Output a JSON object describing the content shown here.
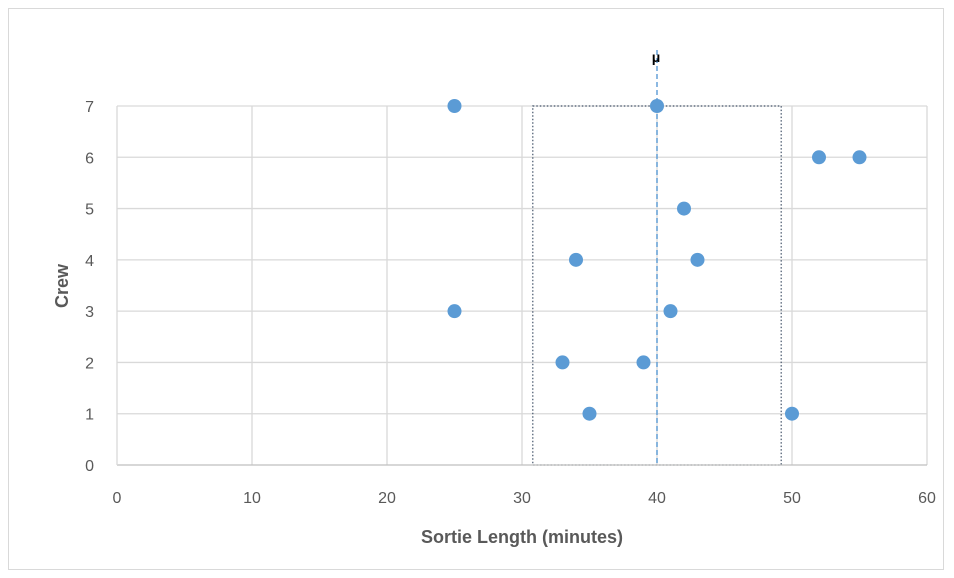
{
  "chart_data": {
    "type": "scatter",
    "title": "",
    "xlabel": "Sortie Length (minutes)",
    "ylabel": "Crew",
    "xlim": [
      0,
      60
    ],
    "ylim": [
      0,
      7
    ],
    "x_ticks": [
      0,
      10,
      20,
      30,
      40,
      50,
      60
    ],
    "y_ticks": [
      0,
      1,
      2,
      3,
      4,
      5,
      6,
      7
    ],
    "grid": true,
    "legend": "none",
    "point_color": "#5b9bd5",
    "series": [
      {
        "points": [
          {
            "x": 25,
            "y": 7
          },
          {
            "x": 40,
            "y": 7
          },
          {
            "x": 52,
            "y": 6
          },
          {
            "x": 55,
            "y": 6
          },
          {
            "x": 42,
            "y": 5
          },
          {
            "x": 34,
            "y": 4
          },
          {
            "x": 43,
            "y": 4
          },
          {
            "x": 25,
            "y": 3
          },
          {
            "x": 41,
            "y": 3
          },
          {
            "x": 33,
            "y": 2
          },
          {
            "x": 39,
            "y": 2
          },
          {
            "x": 35,
            "y": 1
          },
          {
            "x": 50,
            "y": 1
          }
        ]
      }
    ],
    "annotations": {
      "mean_line": {
        "label": "μ",
        "x": 40,
        "style": "dashed",
        "color": "#5b9bd5"
      },
      "range_box": {
        "x_start": 30.8,
        "x_end": 49.2,
        "y_start": 0,
        "y_end": 7,
        "style": "dotted"
      }
    }
  }
}
